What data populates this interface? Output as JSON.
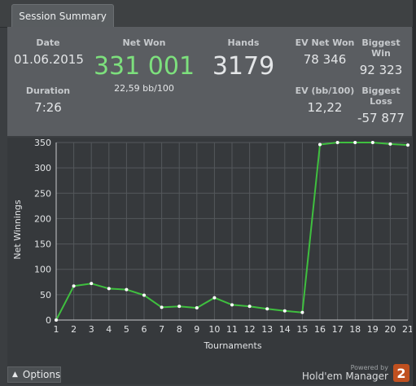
{
  "tab": {
    "label": "Session Summary"
  },
  "summary": {
    "date": {
      "label": "Date",
      "value": "01.06.2015"
    },
    "duration": {
      "label": "Duration",
      "value": "7:26"
    },
    "net_won": {
      "label": "Net Won",
      "value": "331 001",
      "sub": "22,59 bb/100"
    },
    "hands": {
      "label": "Hands",
      "value": "3179"
    },
    "ev_net_won": {
      "label": "EV Net Won",
      "value": "78 346"
    },
    "ev_bb100": {
      "label": "EV (bb/100)",
      "value": "12,22"
    },
    "biggest_win": {
      "label": "Biggest Win",
      "value": "92 323"
    },
    "biggest_loss": {
      "label": "Biggest Loss",
      "value": "-57 877"
    }
  },
  "colors": {
    "net_won": "#7de07d",
    "series": "#3fbf3f",
    "points": "#ffffff"
  },
  "chart_data": {
    "type": "line",
    "xlabel": "Tournaments",
    "ylabel": "Net Winnings",
    "x": [
      1,
      2,
      3,
      4,
      5,
      6,
      7,
      8,
      9,
      10,
      11,
      12,
      13,
      14,
      15,
      16,
      17,
      18,
      19,
      20,
      21
    ],
    "series": [
      {
        "values": [
          0,
          67,
          72,
          62,
          60,
          49,
          25,
          27,
          24,
          44,
          30,
          27,
          22,
          18,
          15,
          346,
          350,
          350,
          350,
          347,
          345
        ]
      }
    ],
    "ylim": [
      0,
      350
    ],
    "yticks": [
      0,
      50,
      100,
      150,
      200,
      250,
      300,
      350
    ],
    "grid": true
  },
  "footer": {
    "options_label": "Options",
    "powered_by": "Powered by",
    "brand": "Hold'em Manager",
    "brand_mark": "2"
  }
}
